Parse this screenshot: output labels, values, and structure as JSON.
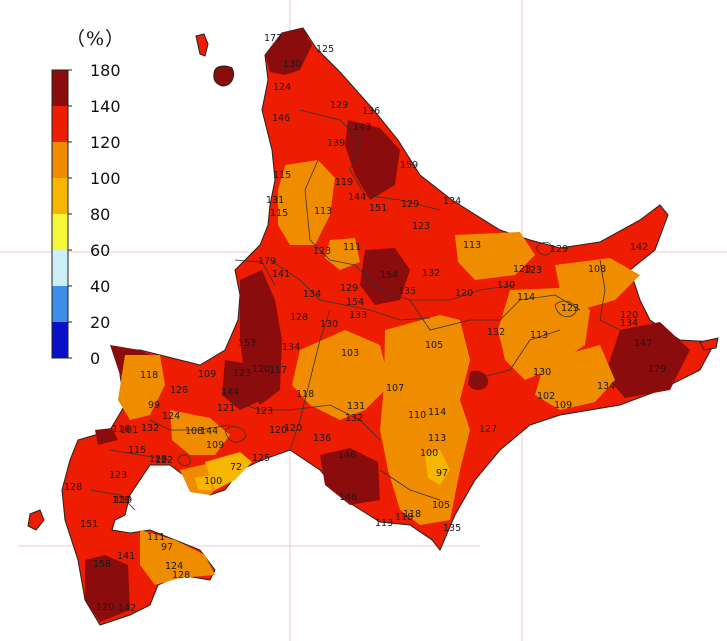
{
  "legend": {
    "unit": "（%）",
    "ticks": [
      "180",
      "140",
      "120",
      "100",
      "80",
      "60",
      "40",
      "20",
      "0"
    ],
    "bands": [
      {
        "from": 0,
        "to": 20,
        "color": "#0a10c8"
      },
      {
        "from": 20,
        "to": 40,
        "color": "#3d8ee8"
      },
      {
        "from": 40,
        "to": 60,
        "color": "#cdeff8"
      },
      {
        "from": 60,
        "to": 80,
        "color": "#f7f73a"
      },
      {
        "from": 80,
        "to": 100,
        "color": "#f7b700"
      },
      {
        "from": 100,
        "to": 120,
        "color": "#f08c00"
      },
      {
        "from": 120,
        "to": 140,
        "color": "#ee1c00"
      },
      {
        "from": 140,
        "to": 180,
        "color": "#8b0c0c"
      }
    ]
  },
  "stations": [
    "177",
    "125",
    "130",
    "124",
    "129",
    "136",
    "146",
    "143",
    "139",
    "159",
    "115",
    "119",
    "131",
    "144",
    "151",
    "129",
    "134",
    "115",
    "113",
    "123",
    "123",
    "113",
    "129",
    "179",
    "111",
    "141",
    "123",
    "154",
    "132",
    "123",
    "108",
    "142",
    "134",
    "129",
    "154",
    "135",
    "120",
    "130",
    "114",
    "128",
    "133",
    "130",
    "123",
    "120",
    "134",
    "153",
    "134",
    "103",
    "105",
    "132",
    "147",
    "113",
    "99",
    "126",
    "118",
    "144",
    "109",
    "123",
    "120",
    "117",
    "179",
    "124",
    "132",
    "121",
    "123",
    "118",
    "107",
    "110",
    "114",
    "120",
    "131",
    "132",
    "108",
    "120",
    "144",
    "122",
    "116",
    "130",
    "102",
    "134",
    "128",
    "111",
    "101",
    "115",
    "109",
    "125",
    "146",
    "136",
    "127",
    "118",
    "128",
    "123",
    "72",
    "100",
    "97",
    "100",
    "146",
    "135",
    "118",
    "119",
    "151",
    "97",
    "128",
    "113",
    "113",
    "105",
    "141",
    "119",
    "124",
    "120",
    "142",
    "109",
    "158"
  ]
}
